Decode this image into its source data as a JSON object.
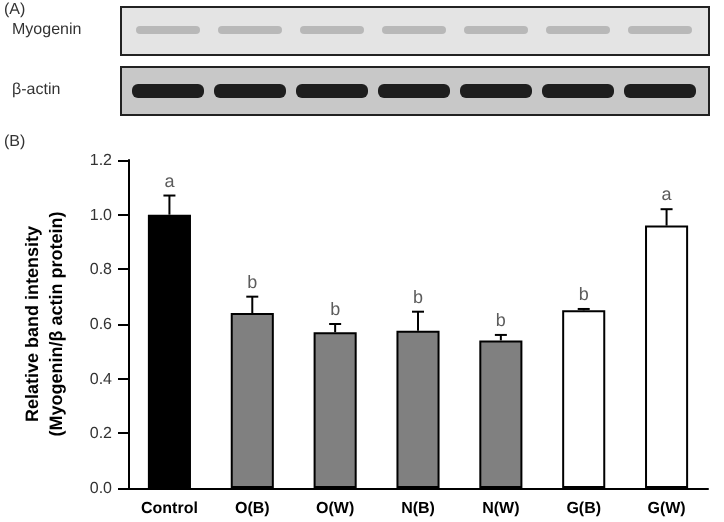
{
  "chart_data": {
    "type": "bar",
    "ylabel": "Relative band intensity\n(Myogenin/β actin protein)",
    "categories": [
      "Control",
      "O(B)",
      "O(W)",
      "N(B)",
      "N(W)",
      "G(B)",
      "G(W)"
    ],
    "values": [
      1.0,
      0.64,
      0.57,
      0.575,
      0.54,
      0.65,
      0.96
    ],
    "errors": [
      0.07,
      0.06,
      0.03,
      0.07,
      0.02,
      0.005,
      0.06
    ],
    "colors": [
      "#000000",
      "#808080",
      "#808080",
      "#808080",
      "#808080",
      "#ffffff",
      "#ffffff"
    ],
    "ylim": [
      0,
      1.2
    ],
    "yticks": [
      {
        "value": 0,
        "label": "0.0"
      },
      0.2,
      0.4,
      0.6,
      0.8,
      {
        "value": 1,
        "label": "1.0"
      },
      1.2
    ],
    "grid": false,
    "annotations": [
      "(A)",
      "Myogenin",
      "β-actin",
      "(B)",
      {
        "text": "a",
        "x": "Control",
        "y": 1.07
      },
      {
        "text": "b",
        "x": "O(B)",
        "y": 0.7
      },
      {
        "text": "b",
        "x": "O(W)",
        "y": 0.6
      },
      {
        "text": "b",
        "x": "N(B)",
        "y": 0.645
      },
      {
        "text": "b",
        "x": "N(W)",
        "y": 0.56
      },
      {
        "text": "b",
        "x": "G(B)",
        "y": 0.655
      },
      {
        "text": "a",
        "x": "G(W)",
        "y": 1.02
      }
    ]
  }
}
